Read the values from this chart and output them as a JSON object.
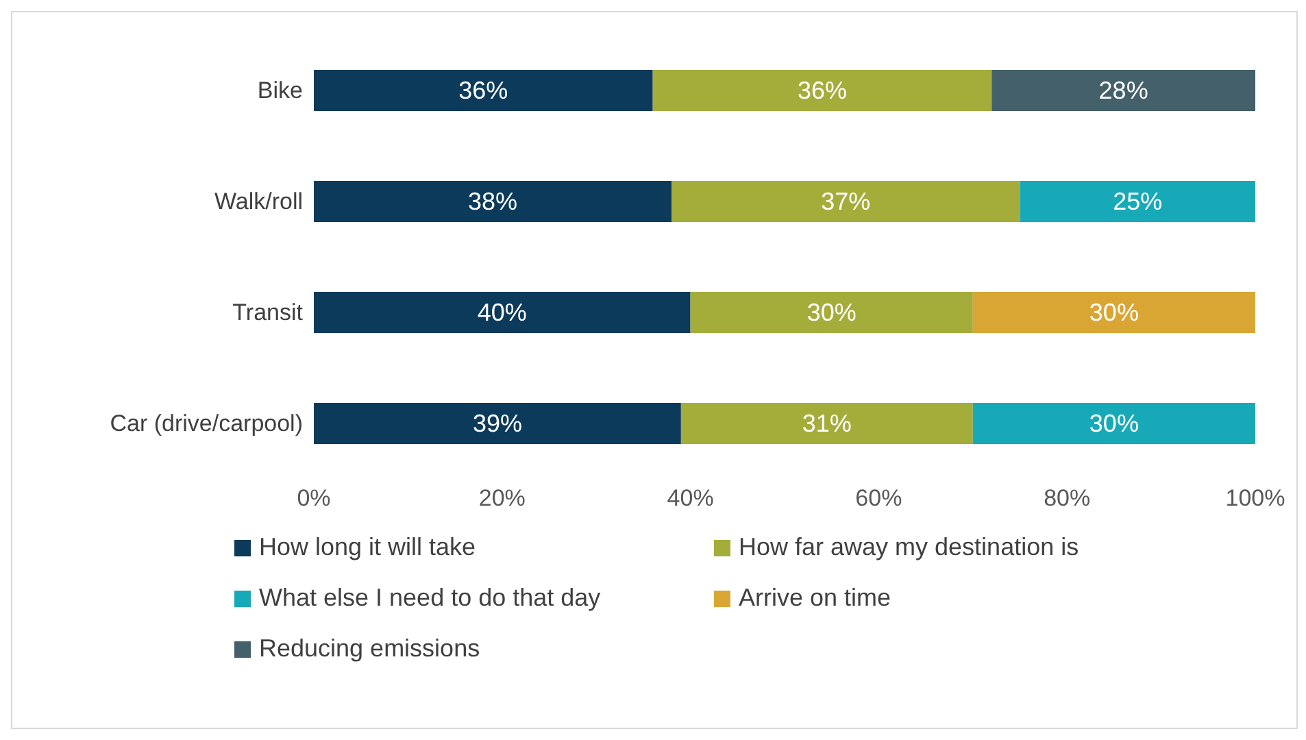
{
  "chart_data": {
    "type": "bar",
    "orientation": "horizontal",
    "stacked": true,
    "categories": [
      "Bike",
      "Walk/roll",
      "Transit",
      "Car (drive/carpool)"
    ],
    "series": [
      {
        "name": "How long it will take",
        "color": "#0b3a5a",
        "values": [
          36,
          38,
          40,
          39
        ],
        "value_labels": [
          "36%",
          "38%",
          "40%",
          "39%"
        ]
      },
      {
        "name": "How far away my destination is",
        "color": "#a4ad3a",
        "values": [
          36,
          37,
          30,
          31
        ],
        "value_labels": [
          "36%",
          "37%",
          "30%",
          "31%"
        ]
      },
      {
        "name": "What else I need to do that day",
        "color": "#17a9b8",
        "values": [
          null,
          25,
          null,
          30
        ],
        "value_labels": [
          null,
          "25%",
          null,
          "30%"
        ]
      },
      {
        "name": "Arrive on time",
        "color": "#d9a634",
        "values": [
          null,
          null,
          30,
          null
        ],
        "value_labels": [
          null,
          null,
          "30%",
          null
        ]
      },
      {
        "name": "Reducing emissions",
        "color": "#44606a",
        "values": [
          28,
          null,
          null,
          null
        ],
        "value_labels": [
          "28%",
          null,
          null,
          null
        ]
      }
    ],
    "xlim": [
      0,
      100
    ],
    "xticks": [
      {
        "value": 0,
        "label": "0%"
      },
      {
        "value": 20,
        "label": "20%"
      },
      {
        "value": 40,
        "label": "40%"
      },
      {
        "value": 60,
        "label": "60%"
      },
      {
        "value": 80,
        "label": "80%"
      },
      {
        "value": 100,
        "label": "100%"
      }
    ],
    "grid": false,
    "legend": "bottom"
  }
}
